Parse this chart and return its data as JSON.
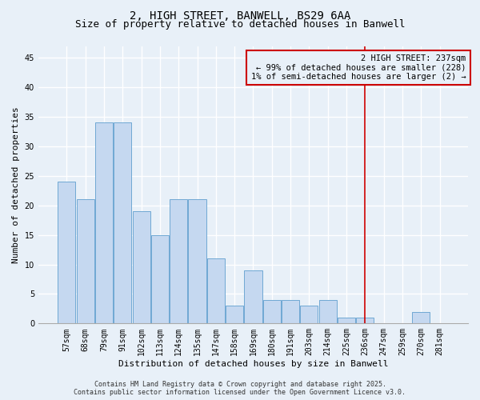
{
  "title": "2, HIGH STREET, BANWELL, BS29 6AA",
  "subtitle": "Size of property relative to detached houses in Banwell",
  "xlabel": "Distribution of detached houses by size in Banwell",
  "ylabel": "Number of detached properties",
  "categories": [
    "57sqm",
    "68sqm",
    "79sqm",
    "91sqm",
    "102sqm",
    "113sqm",
    "124sqm",
    "135sqm",
    "147sqm",
    "158sqm",
    "169sqm",
    "180sqm",
    "191sqm",
    "203sqm",
    "214sqm",
    "225sqm",
    "236sqm",
    "247sqm",
    "259sqm",
    "270sqm",
    "281sqm"
  ],
  "values": [
    24,
    21,
    34,
    34,
    19,
    15,
    21,
    21,
    11,
    3,
    9,
    4,
    4,
    3,
    4,
    1,
    1,
    0,
    0,
    2,
    0
  ],
  "bar_color": "#c5d8f0",
  "bar_edgecolor": "#6fa8d4",
  "bg_color": "#e8f0f8",
  "grid_color": "#ffffff",
  "vline_x_index": 16,
  "vline_color": "#cc0000",
  "annotation_text": "2 HIGH STREET: 237sqm\n← 99% of detached houses are smaller (228)\n1% of semi-detached houses are larger (2) →",
  "annotation_box_color": "#cc0000",
  "ylim": [
    0,
    47
  ],
  "yticks": [
    0,
    5,
    10,
    15,
    20,
    25,
    30,
    35,
    40,
    45
  ],
  "footer_line1": "Contains HM Land Registry data © Crown copyright and database right 2025.",
  "footer_line2": "Contains public sector information licensed under the Open Government Licence v3.0.",
  "title_fontsize": 10,
  "subtitle_fontsize": 9,
  "axis_label_fontsize": 8,
  "tick_fontsize": 7,
  "annotation_fontsize": 7.5,
  "footer_fontsize": 6
}
